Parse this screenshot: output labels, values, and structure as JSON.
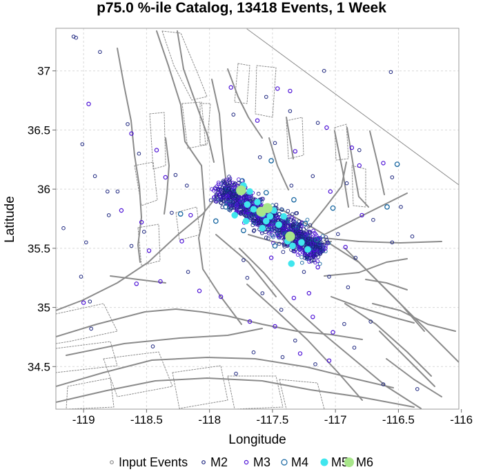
{
  "chart_data": {
    "type": "scatter",
    "title": "p75.0 %-ile Catalog, 13418 Events, 1 Week",
    "xlabel": "Longitude",
    "ylabel": "Latitude",
    "xlim": [
      -119.22,
      -116.02
    ],
    "ylim": [
      34.14,
      37.36
    ],
    "xticks": [
      -119,
      -118.5,
      -118,
      -117.5,
      -117,
      -116.5,
      -116
    ],
    "xtick_labels": [
      "-119",
      "-118.5",
      "-118",
      "-117.5",
      "-117",
      "-116.5",
      "-116"
    ],
    "yticks": [
      34.5,
      35,
      35.5,
      36,
      36.5,
      37
    ],
    "ytick_labels": [
      "34.5",
      "35",
      "35.5",
      "36",
      "36.5",
      "37"
    ],
    "grid": true,
    "legend_position": "bottom",
    "legend": [
      {
        "label": "Input Events",
        "color": "#888888",
        "marker": "open-circle"
      },
      {
        "label": "M2",
        "color": "#1a237e",
        "marker": "open-circle"
      },
      {
        "label": "M3",
        "color": "#4b0fd6",
        "marker": "open-circle"
      },
      {
        "label": "M4",
        "color": "#1565a0",
        "marker": "open-circle"
      },
      {
        "label": "M5",
        "color": "#40e6ee",
        "marker": "filled-circle"
      },
      {
        "label": "M6",
        "color": "#a8e68a",
        "marker": "filled-circle"
      }
    ],
    "series": [
      {
        "name": "M2",
        "color": "#1a237e",
        "points": [
          [
            -119.08,
            37.29
          ],
          [
            -119.06,
            37.28
          ],
          [
            -118.87,
            37.16
          ],
          [
            -118.65,
            36.55
          ],
          [
            -119.01,
            36.38
          ],
          [
            -118.91,
            36.11
          ],
          [
            -118.81,
            35.98
          ],
          [
            -118.73,
            35.98
          ],
          [
            -118.98,
            35.55
          ],
          [
            -119.16,
            35.67
          ],
          [
            -119.02,
            35.26
          ],
          [
            -118.95,
            35.05
          ],
          [
            -118.17,
            35.3
          ],
          [
            -117.48,
            36.39
          ],
          [
            -117.35,
            36.03
          ],
          [
            -117.18,
            36.11
          ],
          [
            -116.91,
            36.05
          ],
          [
            -116.55,
            36.1
          ],
          [
            -116.48,
            35.85
          ],
          [
            -116.55,
            35.55
          ],
          [
            -116.84,
            35.42
          ],
          [
            -116.9,
            35.17
          ],
          [
            -117.05,
            35.26
          ],
          [
            -116.72,
            34.88
          ],
          [
            -116.93,
            34.86
          ],
          [
            -117.32,
            34.72
          ],
          [
            -117.42,
            34.58
          ],
          [
            -117.65,
            34.62
          ],
          [
            -118.45,
            34.67
          ],
          [
            -118.94,
            34.82
          ],
          [
            -117.09,
            37.0
          ],
          [
            -116.56,
            36.99
          ],
          [
            -117.6,
            36.27
          ],
          [
            -117.89,
            36.07
          ],
          [
            -118.18,
            36.03
          ],
          [
            -118.3,
            35.8
          ],
          [
            -118.52,
            35.64
          ],
          [
            -118.62,
            35.52
          ],
          [
            -117.73,
            35.4
          ],
          [
            -117.58,
            35.12
          ],
          [
            -117.25,
            35.3
          ],
          [
            -117.43,
            34.98
          ],
          [
            -117.16,
            34.52
          ],
          [
            -117.79,
            34.44
          ],
          [
            -116.35,
            34.31
          ],
          [
            -116.62,
            34.35
          ],
          [
            -116.85,
            34.66
          ],
          [
            -118.8,
            35.78
          ],
          [
            -118.56,
            36.3
          ],
          [
            -117.55,
            36.78
          ],
          [
            -117.36,
            36.66
          ],
          [
            -117.14,
            36.56
          ],
          [
            -116.81,
            36.33
          ],
          [
            -117.81,
            36.63
          ],
          [
            -118.27,
            36.12
          ],
          [
            -116.39,
            35.6
          ],
          [
            -116.7,
            35.74
          ],
          [
            -116.98,
            35.62
          ],
          [
            -117.7,
            35.25
          ]
        ]
      },
      {
        "name": "M3",
        "color": "#4b0fd6",
        "points": [
          [
            -118.96,
            36.72
          ],
          [
            -118.62,
            36.47
          ],
          [
            -118.42,
            36.33
          ],
          [
            -118.35,
            36.1
          ],
          [
            -118.7,
            35.82
          ],
          [
            -118.54,
            35.72
          ],
          [
            -118.48,
            35.48
          ],
          [
            -118.39,
            35.22
          ],
          [
            -118.58,
            35.2
          ],
          [
            -119.0,
            35.04
          ],
          [
            -117.46,
            36.85
          ],
          [
            -117.36,
            36.83
          ],
          [
            -117.83,
            36.86
          ],
          [
            -117.62,
            36.58
          ],
          [
            -117.32,
            36.32
          ],
          [
            -117.07,
            36.52
          ],
          [
            -116.87,
            36.35
          ],
          [
            -116.81,
            36.2
          ],
          [
            -116.62,
            36.22
          ],
          [
            -116.79,
            35.78
          ],
          [
            -116.92,
            35.51
          ],
          [
            -117.08,
            35.5
          ],
          [
            -117.21,
            35.12
          ],
          [
            -117.33,
            35.08
          ],
          [
            -117.48,
            34.84
          ],
          [
            -117.68,
            34.88
          ],
          [
            -117.91,
            35.09
          ],
          [
            -118.08,
            35.14
          ],
          [
            -117.18,
            34.92
          ],
          [
            -117.02,
            34.79
          ],
          [
            -117.28,
            34.61
          ],
          [
            -117.05,
            34.55
          ],
          [
            -118.15,
            35.78
          ],
          [
            -118.22,
            35.56
          ],
          [
            -117.04,
            35.98
          ],
          [
            -117.51,
            35.42
          ],
          [
            -117.14,
            35.34
          ]
        ]
      },
      {
        "name": "M4",
        "color": "#1565a0",
        "points": [
          [
            -117.51,
            36.24
          ],
          [
            -117.95,
            35.73
          ],
          [
            -118.23,
            35.79
          ],
          [
            -117.87,
            35.85
          ],
          [
            -117.74,
            36.07
          ],
          [
            -117.24,
            35.71
          ],
          [
            -117.15,
            35.57
          ],
          [
            -117.02,
            35.84
          ],
          [
            -117.33,
            35.91
          ],
          [
            -117.55,
            35.97
          ],
          [
            -116.59,
            35.85
          ],
          [
            -116.51,
            36.21
          ],
          [
            -117.48,
            35.52
          ],
          [
            -117.73,
            35.65
          ]
        ]
      },
      {
        "name": "M5",
        "color": "#40e6ee",
        "points": [
          [
            -117.73,
            36.03
          ],
          [
            -117.68,
            35.98
          ],
          [
            -117.62,
            35.89
          ],
          [
            -117.65,
            35.83
          ],
          [
            -117.58,
            35.79
          ],
          [
            -117.52,
            35.77
          ],
          [
            -117.45,
            35.7
          ],
          [
            -117.41,
            35.77
          ],
          [
            -117.55,
            35.73
          ],
          [
            -117.71,
            35.73
          ],
          [
            -117.58,
            35.67
          ],
          [
            -117.38,
            35.56
          ],
          [
            -117.34,
            35.52
          ],
          [
            -117.27,
            35.55
          ],
          [
            -117.22,
            35.49
          ],
          [
            -117.35,
            35.37
          ],
          [
            -117.7,
            35.87
          ],
          [
            -117.8,
            35.78
          ],
          [
            -117.49,
            35.82
          ]
        ]
      },
      {
        "name": "M6",
        "color": "#a8e68a",
        "points": [
          [
            -117.75,
            35.99
          ],
          [
            -117.59,
            35.81
          ],
          [
            -117.36,
            35.6
          ],
          [
            -117.54,
            35.84
          ]
        ]
      }
    ]
  }
}
